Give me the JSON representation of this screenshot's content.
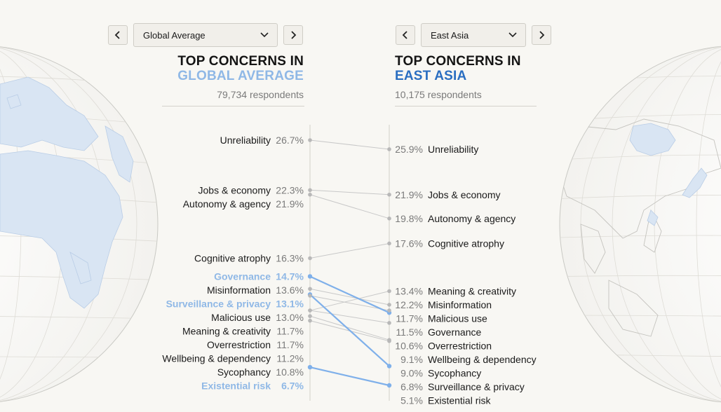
{
  "left_panel": {
    "dropdown": {
      "value": "Global Average"
    },
    "heading_line1": "TOP CONCERNS IN",
    "heading_line2": "GLOBAL AVERAGE",
    "respondents": "79,734 respondents"
  },
  "right_panel": {
    "dropdown": {
      "value": "East Asia"
    },
    "heading_line1": "TOP CONCERNS IN",
    "heading_line2": "EAST ASIA",
    "respondents": "10,175 respondents"
  },
  "colors": {
    "highlight_light": "#8fb8e6",
    "highlight_line": "#7fb0ea",
    "region_blue": "#2a6ec1",
    "neutral_line": "#c8c8c8",
    "neutral_dot": "#b8b8b8",
    "text_gray": "#7a7a7a"
  },
  "icons": [
    "chevron-left-icon",
    "chevron-right-icon",
    "chevron-down-icon",
    "globe-africa-europe",
    "globe-east-asia"
  ],
  "chart_data": {
    "type": "slope",
    "unit": "%",
    "series": [
      {
        "name": "Global Average"
      },
      {
        "name": "East Asia"
      }
    ],
    "items": [
      {
        "label": "Unreliability",
        "left": 26.7,
        "right": 25.9,
        "highlight": false
      },
      {
        "label": "Jobs & economy",
        "left": 22.3,
        "right": 21.9,
        "highlight": false
      },
      {
        "label": "Autonomy & agency",
        "left": 21.9,
        "right": 19.8,
        "highlight": false
      },
      {
        "label": "Cognitive atrophy",
        "left": 16.3,
        "right": 17.6,
        "highlight": false
      },
      {
        "label": "Governance",
        "left": 14.7,
        "right": 11.5,
        "highlight": true
      },
      {
        "label": "Misinformation",
        "left": 13.6,
        "right": 12.2,
        "highlight": false
      },
      {
        "label": "Surveillance & privacy",
        "left": 13.1,
        "right": 6.8,
        "highlight": true
      },
      {
        "label": "Malicious use",
        "left": 13.0,
        "right": 11.7,
        "highlight": false
      },
      {
        "label": "Meaning & creativity",
        "left": 11.7,
        "right": 13.4,
        "highlight": false
      },
      {
        "label": "Overrestriction",
        "left": 11.7,
        "right": 10.6,
        "highlight": false
      },
      {
        "label": "Wellbeing & dependency",
        "left": 11.2,
        "right": 9.1,
        "highlight": false
      },
      {
        "label": "Sycophancy",
        "left": 10.8,
        "right": 9.0,
        "highlight": false
      },
      {
        "label": "Existential risk",
        "left": 6.7,
        "right": 5.1,
        "highlight": true
      }
    ]
  }
}
